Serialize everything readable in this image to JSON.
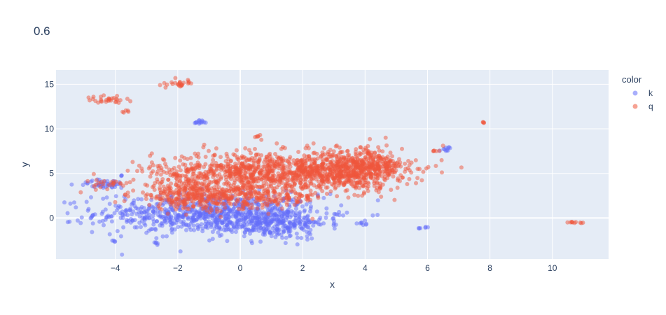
{
  "chart_data": {
    "type": "scatter",
    "title": "0.6",
    "xlabel": "x",
    "ylabel": "y",
    "xlim": [
      -5.9,
      11.8
    ],
    "ylim": [
      -4.6,
      16.6
    ],
    "x_ticks": [
      -4,
      -2,
      0,
      2,
      4,
      6,
      8,
      10
    ],
    "y_ticks": [
      0,
      5,
      10,
      15
    ],
    "grid": true,
    "legend": {
      "title": "color",
      "placement": "right"
    },
    "series": [
      {
        "name": "k",
        "color": "#636efa",
        "clusters": [
          {
            "cx": -1.0,
            "cy": 0.5,
            "sx": 1.8,
            "sy": 1.1,
            "n": 750
          },
          {
            "cx": 1.0,
            "cy": -0.6,
            "sx": 0.9,
            "sy": 0.9,
            "n": 280
          },
          {
            "cx": -4.3,
            "cy": 3.8,
            "sx": 0.45,
            "sy": 0.25,
            "n": 45
          },
          {
            "cx": -1.3,
            "cy": 10.8,
            "sx": 0.12,
            "sy": 0.12,
            "n": 14
          },
          {
            "cx": -2.7,
            "cy": -2.9,
            "sx": 0.04,
            "sy": 0.1,
            "n": 5
          },
          {
            "cx": -4.05,
            "cy": -2.6,
            "sx": 0.03,
            "sy": 0.08,
            "n": 4
          },
          {
            "cx": -3.8,
            "cy": 4.7,
            "sx": 0.03,
            "sy": 0.05,
            "n": 3
          },
          {
            "cx": 4.0,
            "cy": -0.6,
            "sx": 0.1,
            "sy": 0.08,
            "n": 6
          },
          {
            "cx": 5.9,
            "cy": -1.1,
            "sx": 0.12,
            "sy": 0.06,
            "n": 6
          },
          {
            "cx": 6.6,
            "cy": 7.7,
            "sx": 0.12,
            "sy": 0.15,
            "n": 10
          },
          {
            "cx": 3.1,
            "cy": 0.4,
            "sx": 0.06,
            "sy": 0.06,
            "n": 4
          }
        ]
      },
      {
        "name": "q",
        "color": "#ef553b",
        "clusters": [
          {
            "cx": 1.0,
            "cy": 5.2,
            "sx": 1.9,
            "sy": 1.1,
            "n": 1000
          },
          {
            "cx": 3.6,
            "cy": 5.5,
            "sx": 0.8,
            "sy": 1.2,
            "n": 450
          },
          {
            "cx": -1.5,
            "cy": 2.6,
            "sx": 1.0,
            "sy": 0.8,
            "n": 300
          },
          {
            "cx": 0.5,
            "cy": 2.3,
            "sx": 1.1,
            "sy": 0.7,
            "n": 220
          },
          {
            "cx": 4.5,
            "cy": 5.8,
            "sx": 0.35,
            "sy": 0.6,
            "n": 90
          },
          {
            "cx": -4.3,
            "cy": 13.2,
            "sx": 0.3,
            "sy": 0.2,
            "n": 30
          },
          {
            "cx": -1.9,
            "cy": 15.1,
            "sx": 0.2,
            "sy": 0.2,
            "n": 25
          },
          {
            "cx": -3.7,
            "cy": 12.0,
            "sx": 0.06,
            "sy": 0.08,
            "n": 5
          },
          {
            "cx": 0.6,
            "cy": 9.1,
            "sx": 0.1,
            "sy": 0.12,
            "n": 6
          },
          {
            "cx": 7.8,
            "cy": 10.7,
            "sx": 0.03,
            "sy": 0.04,
            "n": 4
          },
          {
            "cx": 10.7,
            "cy": -0.5,
            "sx": 0.12,
            "sy": 0.06,
            "n": 10
          },
          {
            "cx": 6.3,
            "cy": 7.45,
            "sx": 0.08,
            "sy": 0.06,
            "n": 5
          },
          {
            "cx": -4.2,
            "cy": 3.9,
            "sx": 0.3,
            "sy": 0.2,
            "n": 20
          },
          {
            "cx": -2.1,
            "cy": 4.9,
            "sx": 0.05,
            "sy": 0.05,
            "n": 3
          }
        ]
      }
    ]
  }
}
